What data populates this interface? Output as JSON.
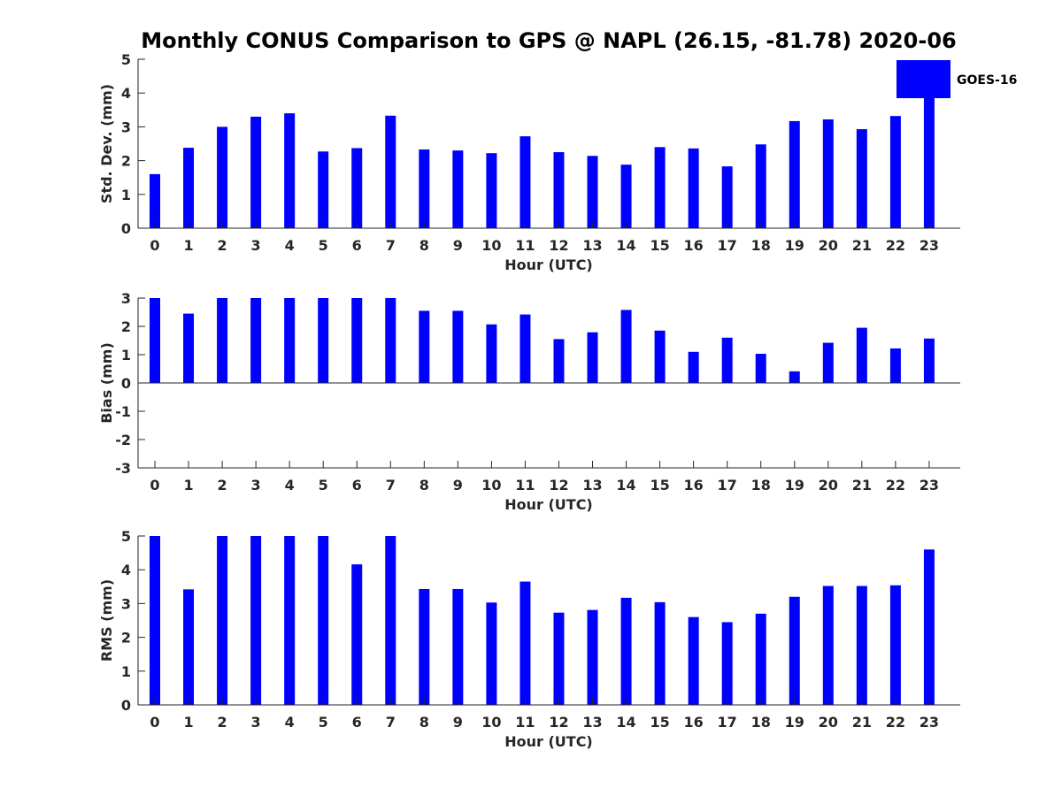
{
  "title": "Monthly CONUS Comparison to GPS @ NAPL (26.15, -81.78) 2020-06",
  "legend": {
    "label": "GOES-16",
    "placement": "top-right"
  },
  "colors": {
    "bar": "#0000ff",
    "axis": "#262626",
    "text": "#262626"
  },
  "chart_data": [
    {
      "type": "bar",
      "categories": [
        "0",
        "1",
        "2",
        "3",
        "4",
        "5",
        "6",
        "7",
        "8",
        "9",
        "10",
        "11",
        "12",
        "13",
        "14",
        "15",
        "16",
        "17",
        "18",
        "19",
        "20",
        "21",
        "22",
        "23"
      ],
      "series": [
        {
          "name": "GOES-16",
          "values": [
            1.6,
            2.38,
            3.0,
            3.3,
            3.4,
            2.27,
            2.37,
            3.33,
            2.33,
            2.3,
            2.22,
            2.72,
            2.25,
            2.14,
            1.88,
            2.4,
            2.36,
            1.83,
            2.48,
            3.17,
            3.22,
            2.93,
            3.32,
            4.05
          ]
        }
      ],
      "xlabel": "Hour (UTC)",
      "ylabel": "Std. Dev. (mm)",
      "ylim": [
        0,
        5
      ],
      "yticks": [
        "0",
        "1",
        "2",
        "3",
        "4",
        "5"
      ],
      "grid": false
    },
    {
      "type": "bar",
      "categories": [
        "0",
        "1",
        "2",
        "3",
        "4",
        "5",
        "6",
        "7",
        "8",
        "9",
        "10",
        "11",
        "12",
        "13",
        "14",
        "15",
        "16",
        "17",
        "18",
        "19",
        "20",
        "21",
        "22",
        "23"
      ],
      "series": [
        {
          "name": "GOES-16",
          "values": [
            3.0,
            2.45,
            3.0,
            3.0,
            3.0,
            3.0,
            3.0,
            3.0,
            2.55,
            2.55,
            2.07,
            2.42,
            1.55,
            1.79,
            2.58,
            1.85,
            1.1,
            1.6,
            1.03,
            0.41,
            1.42,
            1.95,
            1.22,
            1.57
          ]
        }
      ],
      "xlabel": "Hour (UTC)",
      "ylabel": "Bias (mm)",
      "ylim": [
        -3,
        3
      ],
      "yticks": [
        "-3",
        "-2",
        "-1",
        "0",
        "1",
        "2",
        "3"
      ],
      "grid": false
    },
    {
      "type": "bar",
      "categories": [
        "0",
        "1",
        "2",
        "3",
        "4",
        "5",
        "6",
        "7",
        "8",
        "9",
        "10",
        "11",
        "12",
        "13",
        "14",
        "15",
        "16",
        "17",
        "18",
        "19",
        "20",
        "21",
        "22",
        "23"
      ],
      "series": [
        {
          "name": "GOES-16",
          "values": [
            5.0,
            3.42,
            5.0,
            5.0,
            5.0,
            5.0,
            4.16,
            5.0,
            3.43,
            3.43,
            3.03,
            3.65,
            2.73,
            2.81,
            3.17,
            3.04,
            2.6,
            2.45,
            2.7,
            3.2,
            3.52,
            3.52,
            3.54,
            4.6
          ]
        }
      ],
      "xlabel": "Hour (UTC)",
      "ylabel": "RMS (mm)",
      "ylim": [
        0,
        5
      ],
      "yticks": [
        "0",
        "1",
        "2",
        "3",
        "4",
        "5"
      ],
      "grid": false
    }
  ]
}
